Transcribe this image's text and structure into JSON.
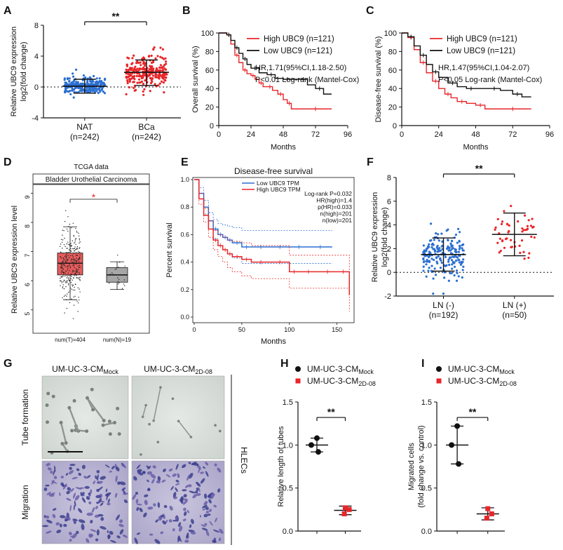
{
  "panels": {
    "A": "A",
    "B": "B",
    "C": "C",
    "D": "D",
    "E": "E",
    "F": "F",
    "G": "G",
    "H": "H",
    "I": "I"
  },
  "colors": {
    "red": "#e8262a",
    "black": "#111111",
    "blue": "#2c6fd0",
    "box_red": "#e65c5c",
    "box_grey": "#a6a6a6"
  },
  "chart_data": [
    {
      "id": "A",
      "type": "scatter",
      "categories": [
        "NAT",
        "BCa"
      ],
      "category_sub": [
        "(n=242)",
        "(n=242)"
      ],
      "ylabel_line1": "Relative UBC9 expression",
      "ylabel_line2": "log2(fold change)",
      "yticks": [
        -4,
        0,
        4,
        8
      ],
      "ylim": [
        -4,
        8
      ],
      "means": [
        0.1,
        1.9
      ],
      "sd_upper": [
        1.0,
        3.5
      ],
      "sd_lower": [
        -0.8,
        0.2
      ],
      "significance": "**"
    },
    {
      "id": "B",
      "type": "line",
      "title": "",
      "xlabel": "Months",
      "ylabel": "Overall survival (%)",
      "xticks": [
        0,
        24,
        48,
        72,
        96
      ],
      "yticks": [
        0,
        20,
        40,
        60,
        80,
        100
      ],
      "xlim": [
        0,
        96
      ],
      "ylim": [
        0,
        100
      ],
      "legend": [
        "High UBC9 (n=121)",
        "Low UBC9 (n=121)"
      ],
      "annotation": [
        "HR,1.71(95%CI,1.18-2.50)",
        "P<0.01 Log-rank (Mantel-Cox)"
      ],
      "series": [
        {
          "name": "High UBC9 (n=121)",
          "color": "red",
          "x": [
            0,
            6,
            9,
            12,
            15,
            18,
            21,
            24,
            27,
            30,
            33,
            36,
            40,
            44,
            48,
            51,
            54,
            60,
            84
          ],
          "y": [
            100,
            98,
            88,
            76,
            68,
            60,
            56,
            54,
            50,
            46,
            42,
            42,
            38,
            34,
            28,
            24,
            18,
            18,
            18
          ]
        },
        {
          "name": "Low UBC9 (n=121)",
          "color": "black",
          "x": [
            0,
            6,
            9,
            12,
            15,
            18,
            21,
            24,
            30,
            36,
            42,
            48,
            54,
            60,
            66,
            72,
            78,
            84
          ],
          "y": [
            100,
            98,
            92,
            84,
            78,
            72,
            66,
            62,
            57,
            55,
            51,
            50,
            50,
            50,
            44,
            40,
            34,
            34
          ]
        }
      ]
    },
    {
      "id": "C",
      "type": "line",
      "title": "",
      "xlabel": "Months",
      "ylabel": "Disease-free survival (%)",
      "xticks": [
        0,
        24,
        48,
        72,
        96
      ],
      "yticks": [
        0,
        20,
        40,
        60,
        80,
        100
      ],
      "xlim": [
        0,
        96
      ],
      "ylim": [
        0,
        100
      ],
      "legend": [
        "High UBC9 (n=121)",
        "Low UBC9 (n=121)"
      ],
      "annotation": [
        "HR,1.47(95%CI,1.04-2.07)",
        "P<0.05 Log-rank (Mantel-Cox)"
      ],
      "series": [
        {
          "name": "High UBC9 (n=121)",
          "color": "red",
          "x": [
            0,
            4,
            8,
            12,
            16,
            20,
            24,
            28,
            32,
            36,
            42,
            48,
            54,
            60,
            84
          ],
          "y": [
            100,
            95,
            82,
            68,
            57,
            48,
            40,
            34,
            30,
            26,
            24,
            22,
            18,
            18,
            18
          ]
        },
        {
          "name": "Low UBC9 (n=121)",
          "color": "black",
          "x": [
            0,
            4,
            8,
            12,
            16,
            20,
            24,
            30,
            36,
            42,
            48,
            56,
            64,
            72,
            78,
            84
          ],
          "y": [
            100,
            96,
            86,
            76,
            66,
            58,
            52,
            46,
            42,
            40,
            40,
            40,
            38,
            34,
            31,
            31
          ]
        }
      ]
    },
    {
      "id": "D",
      "type": "box",
      "top_title": "TCGA data",
      "title": "Bladder Urothelial Carcinoma",
      "ylabel": "Relative UBC9 expression level",
      "yticks": [
        5,
        6,
        7,
        8,
        9
      ],
      "ylim": [
        4.2,
        9.3
      ],
      "categories": [
        "num(T)=404",
        "num(N)=19"
      ],
      "boxes": [
        {
          "q1": 6.2,
          "median": 6.6,
          "q3": 6.95,
          "whisker_low": 5.35,
          "whisker_high": 7.85,
          "color": "box_red"
        },
        {
          "q1": 5.95,
          "median": 6.2,
          "q3": 6.45,
          "whisker_low": 5.7,
          "whisker_high": 6.65,
          "color": "box_grey"
        }
      ],
      "significance": "*"
    },
    {
      "id": "E",
      "type": "line",
      "title": "Disease-free survival",
      "xlabel": "Months",
      "ylabel": "Percent survival",
      "xticks": [
        0,
        50,
        100,
        150
      ],
      "yticks": [
        0.0,
        0.2,
        0.4,
        0.6,
        0.8,
        1.0
      ],
      "xlim": [
        0,
        165
      ],
      "ylim": [
        0,
        1.0
      ],
      "legend": [
        "Low UBC9 TPM",
        "High UBC9 TPM"
      ],
      "annotation": [
        "Log-rank P=0.032",
        "HR(high)=1.4",
        "p(HR)=0.033",
        "n(high)=201",
        "n(low)=201"
      ],
      "series": [
        {
          "name": "Low UBC9 TPM",
          "color": "blue",
          "x": [
            0,
            5,
            10,
            15,
            20,
            25,
            30,
            35,
            40,
            50,
            60,
            80,
            100,
            120,
            145
          ],
          "y": [
            1.0,
            0.9,
            0.8,
            0.7,
            0.64,
            0.6,
            0.58,
            0.56,
            0.54,
            0.51,
            0.51,
            0.51,
            0.51,
            0.51,
            0.51
          ]
        },
        {
          "name": "High UBC9 TPM",
          "color": "red",
          "x": [
            0,
            5,
            10,
            15,
            20,
            25,
            30,
            35,
            40,
            50,
            60,
            80,
            100,
            110,
            130,
            150,
            163
          ],
          "y": [
            1.0,
            0.86,
            0.74,
            0.64,
            0.56,
            0.52,
            0.49,
            0.46,
            0.44,
            0.42,
            0.4,
            0.4,
            0.33,
            0.33,
            0.33,
            0.33,
            0.16
          ]
        }
      ]
    },
    {
      "id": "F",
      "type": "scatter",
      "categories": [
        "LN (-)",
        "LN (+)"
      ],
      "category_sub": [
        "(n=192)",
        "(n=50)"
      ],
      "ylabel_line1": "Relative UBC9 expression",
      "ylabel_line2": "log2(fold change)",
      "yticks": [
        -2,
        0,
        2,
        4,
        6,
        8
      ],
      "ylim": [
        -2,
        8
      ],
      "means": [
        1.5,
        3.2
      ],
      "sd_upper": [
        2.9,
        5.0
      ],
      "sd_lower": [
        0.1,
        1.4
      ],
      "significance": "**"
    },
    {
      "id": "H",
      "type": "scatter",
      "legend": [
        "UM-UC-3-CM",
        "UM-UC-3-CM"
      ],
      "legend_sub": [
        "Mock",
        "2D-08"
      ],
      "ylabel": "Relative length of tubes",
      "yticks": [
        0.0,
        0.5,
        1.0,
        1.5
      ],
      "ylim": [
        0,
        1.5
      ],
      "groups": [
        {
          "points": [
            1.08,
            1.0,
            0.92
          ],
          "mean": 1.0,
          "sd": 0.08,
          "marker": "circle",
          "color": "black"
        },
        {
          "points": [
            0.27,
            0.25,
            0.2
          ],
          "mean": 0.24,
          "sd": 0.05,
          "marker": "square",
          "color": "red"
        }
      ],
      "significance": "**"
    },
    {
      "id": "I",
      "type": "scatter",
      "legend": [
        "UM-UC-3-CM",
        "UM-UC-3-CM"
      ],
      "legend_sub": [
        "Mock",
        "2D-08"
      ],
      "ylabel_line1": "Migrated cells",
      "ylabel_line2": "(fold change vs. control)",
      "yticks": [
        0.0,
        0.5,
        1.0,
        1.5
      ],
      "ylim": [
        0,
        1.5
      ],
      "groups": [
        {
          "points": [
            1.22,
            1.0,
            0.78
          ],
          "mean": 1.0,
          "sd": 0.22,
          "marker": "circle",
          "color": "black"
        },
        {
          "points": [
            0.26,
            0.2,
            0.15
          ],
          "mean": 0.2,
          "sd": 0.07,
          "marker": "square",
          "color": "red"
        }
      ],
      "significance": "**"
    }
  ],
  "panel_g": {
    "col_labels": [
      "UM-UC-3-CM",
      "UM-UC-3-CM"
    ],
    "col_label_sub": [
      "Mock",
      "2D-08"
    ],
    "row_labels": [
      "Tube formation",
      "Migration"
    ],
    "side_label": "HLECs"
  }
}
